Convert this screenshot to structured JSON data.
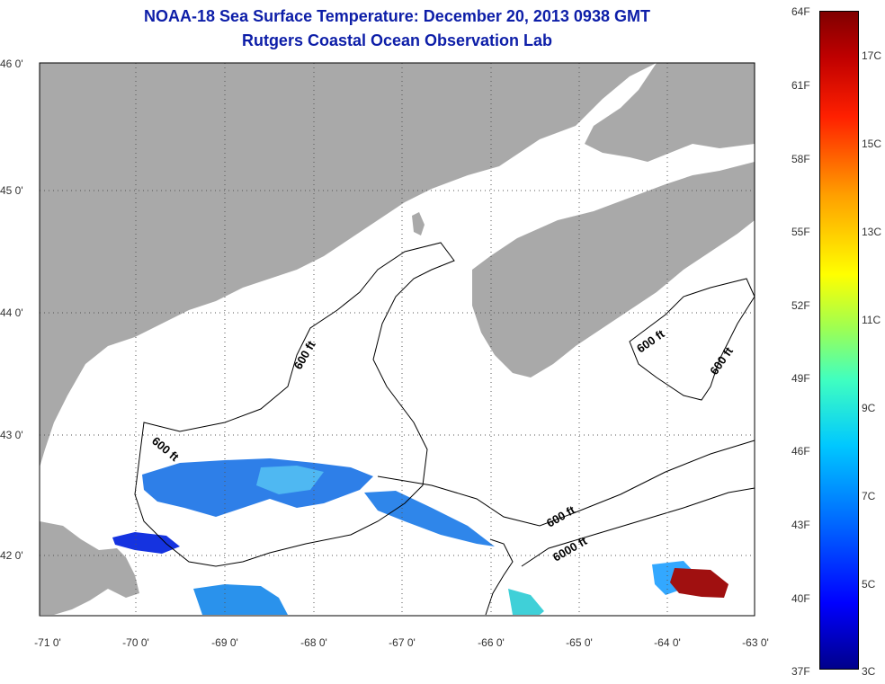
{
  "header": {
    "title": "NOAA-18 Sea Surface Temperature:  December 20, 2013 0938 GMT",
    "subtitle": "Rutgers Coastal Ocean Observation Lab"
  },
  "map": {
    "x_ticks": [
      "-71 0'",
      "-70 0'",
      "-69 0'",
      "-68 0'",
      "-67 0'",
      "-66 0'",
      "-65 0'",
      "-64 0'",
      "-63 0'"
    ],
    "y_ticks": [
      "46 0'",
      "45 0'",
      "44 0'",
      "43 0'",
      "42 0'"
    ],
    "contour_labels": [
      "600 ft",
      "600 ft",
      "600 ft",
      "600 ft",
      "600 ft",
      "6000 ft"
    ],
    "grid": true,
    "colors": {
      "land": "#a9a9a9",
      "water": "#ffffff",
      "grid": "#555555",
      "contour": "#000000"
    }
  },
  "colorbar": {
    "fahrenheit": [
      "64F",
      "61F",
      "58F",
      "55F",
      "52F",
      "49F",
      "46F",
      "43F",
      "40F",
      "37F"
    ],
    "celsius": [
      "17C",
      "15C",
      "13C",
      "11C",
      "9C",
      "7C",
      "5C",
      "3C"
    ]
  }
}
